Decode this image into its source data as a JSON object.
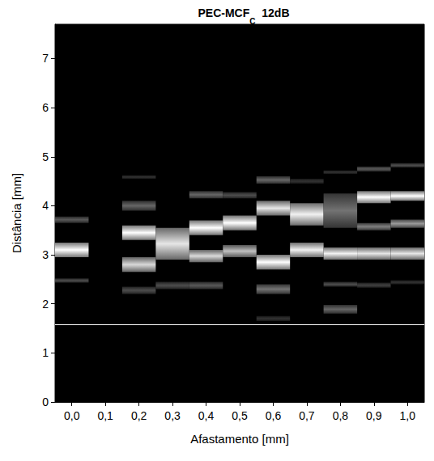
{
  "chart_data": {
    "type": "heatmap",
    "title": {
      "main": "PEC-MCF",
      "subscript": "C",
      "suffix": "12dB"
    },
    "x_label": "Afastamento [mm]",
    "y_label": "Distância [mm]",
    "categories": [
      "0,0",
      "0,1",
      "0,2",
      "0,3",
      "0,4",
      "0,5",
      "0,6",
      "0,7",
      "0,8",
      "0,9",
      "1,0"
    ],
    "bands": [
      [
        [
          2.95,
          3.25,
          1.0
        ],
        [
          3.65,
          3.78,
          0.35
        ],
        [
          2.43,
          2.52,
          0.3
        ]
      ],
      [],
      [
        [
          3.3,
          3.6,
          1.0
        ],
        [
          2.65,
          2.95,
          0.85
        ],
        [
          3.9,
          4.1,
          0.4
        ],
        [
          2.2,
          2.35,
          0.3
        ],
        [
          4.55,
          4.62,
          0.2
        ]
      ],
      [
        [
          2.9,
          3.55,
          0.9
        ],
        [
          2.3,
          2.45,
          0.3
        ]
      ],
      [
        [
          3.4,
          3.7,
          1.0
        ],
        [
          2.85,
          3.1,
          0.85
        ],
        [
          4.15,
          4.3,
          0.4
        ],
        [
          2.3,
          2.45,
          0.35
        ]
      ],
      [
        [
          3.5,
          3.8,
          1.0
        ],
        [
          2.95,
          3.2,
          0.75
        ],
        [
          4.15,
          4.28,
          0.3
        ]
      ],
      [
        [
          3.8,
          4.1,
          0.9
        ],
        [
          2.7,
          3.0,
          1.0
        ],
        [
          4.45,
          4.6,
          0.4
        ],
        [
          2.2,
          2.4,
          0.45
        ],
        [
          1.65,
          1.75,
          0.2
        ]
      ],
      [
        [
          3.6,
          4.05,
          0.95
        ],
        [
          2.95,
          3.25,
          0.95
        ],
        [
          4.45,
          4.55,
          0.2
        ]
      ],
      [
        [
          3.55,
          4.25,
          0.45
        ],
        [
          2.9,
          3.15,
          0.95
        ],
        [
          2.35,
          2.45,
          0.3
        ],
        [
          1.8,
          1.98,
          0.4
        ],
        [
          4.65,
          4.72,
          0.2
        ]
      ],
      [
        [
          4.05,
          4.3,
          1.0
        ],
        [
          2.9,
          3.15,
          0.9
        ],
        [
          3.5,
          3.65,
          0.5
        ],
        [
          4.7,
          4.8,
          0.35
        ],
        [
          2.33,
          2.43,
          0.25
        ]
      ],
      [
        [
          4.1,
          4.3,
          1.0
        ],
        [
          2.9,
          3.15,
          0.9
        ],
        [
          3.55,
          3.72,
          0.6
        ],
        [
          4.78,
          4.87,
          0.3
        ],
        [
          2.4,
          2.48,
          0.2
        ]
      ]
    ],
    "intensity_range": [
      0,
      1
    ],
    "reference_line": 1.58,
    "ylim": [
      0,
      7.7
    ],
    "yticks": [
      0,
      1,
      2,
      3,
      4,
      5,
      6,
      7
    ]
  }
}
